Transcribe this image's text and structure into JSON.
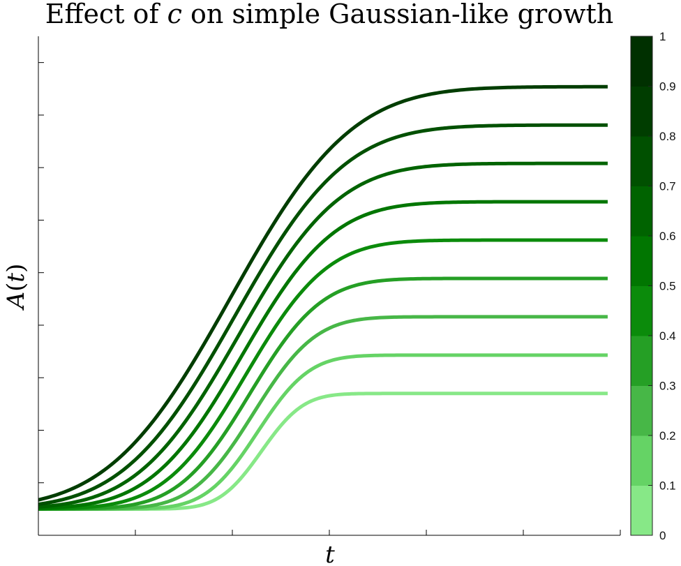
{
  "chart_data": {
    "type": "line",
    "title_prefix": "Effect of ",
    "title_var": "c",
    "title_suffix": " on simple Gaussian-like growth",
    "xlabel": "t",
    "ylabel": "A(t)",
    "ylabel_var": "A",
    "ylabel_arg": "t",
    "xlim": [
      0,
      6
    ],
    "ylim": [
      0,
      9.5
    ],
    "x_ticks": [
      0,
      1,
      2,
      3,
      4,
      5,
      6
    ],
    "y_ticks": [
      0,
      1,
      2,
      3,
      4,
      5,
      6,
      7,
      8,
      9
    ],
    "tick_labels_visible": false,
    "baseline": 0.5,
    "series": [
      {
        "c": 0.1,
        "plateau": 2.7,
        "center": 2.3,
        "width": 0.34,
        "color": "#87E887"
      },
      {
        "c": 0.2,
        "plateau": 3.43,
        "center": 2.26,
        "width": 0.42,
        "color": "#65D365"
      },
      {
        "c": 0.3,
        "plateau": 4.16,
        "center": 2.22,
        "width": 0.5,
        "color": "#47B747"
      },
      {
        "c": 0.4,
        "plateau": 4.89,
        "center": 2.18,
        "width": 0.58,
        "color": "#259F25"
      },
      {
        "c": 0.5,
        "plateau": 5.62,
        "center": 2.14,
        "width": 0.66,
        "color": "#0B8B0B"
      },
      {
        "c": 0.6,
        "plateau": 6.35,
        "center": 2.1,
        "width": 0.74,
        "color": "#017601"
      },
      {
        "c": 0.7,
        "plateau": 7.08,
        "center": 2.06,
        "width": 0.82,
        "color": "#006300"
      },
      {
        "c": 0.8,
        "plateau": 7.81,
        "center": 2.02,
        "width": 0.9,
        "color": "#005000"
      },
      {
        "c": 0.9,
        "plateau": 8.54,
        "center": 1.98,
        "width": 0.98,
        "color": "#003D00"
      }
    ],
    "colorbar": {
      "ticks": [
        "0",
        "0.1",
        "0.2",
        "0.3",
        "0.4",
        "0.5",
        "0.6",
        "0.7",
        "0.8",
        "0.9",
        "1"
      ],
      "colors": [
        "#87E887",
        "#65D365",
        "#47B747",
        "#259F25",
        "#0B8B0B",
        "#017601",
        "#006300",
        "#005000",
        "#003D00",
        "#003000"
      ]
    }
  }
}
